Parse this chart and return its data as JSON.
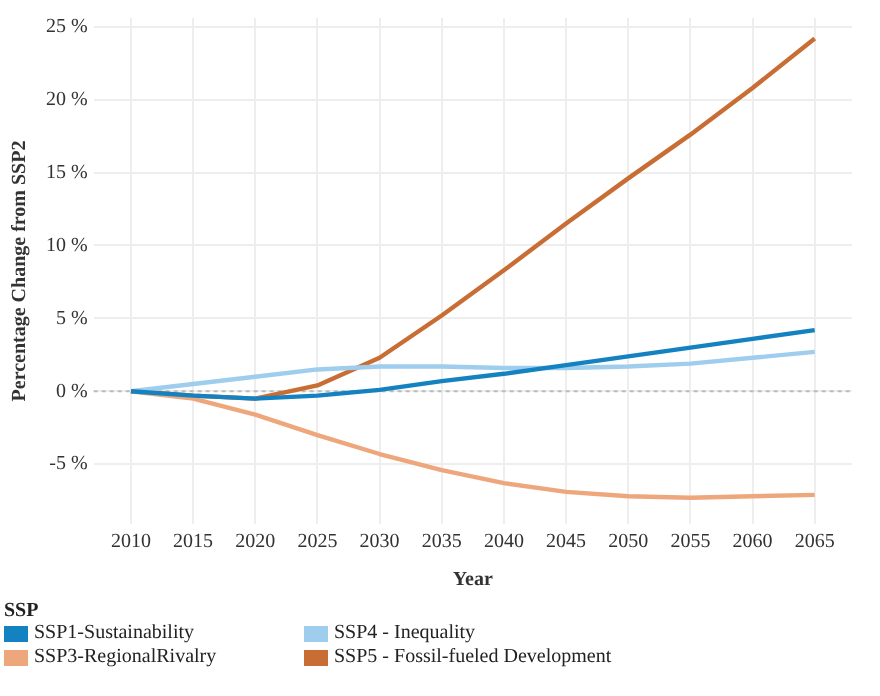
{
  "chart_data": {
    "type": "line",
    "xlabel": "Year",
    "ylabel": "Percentage Change from SSP2",
    "legend_title": "SSP",
    "x": [
      2010,
      2015,
      2020,
      2025,
      2030,
      2035,
      2040,
      2045,
      2050,
      2055,
      2060,
      2065
    ],
    "series": [
      {
        "name": "SSP1-Sustainability",
        "color": "#1482c1",
        "values": [
          0,
          -0.3,
          -0.5,
          -0.3,
          0.1,
          0.7,
          1.2,
          1.8,
          2.4,
          3.0,
          3.6,
          4.2
        ]
      },
      {
        "name": "SSP3-RegionalRivalry",
        "color": "#eea77c",
        "values": [
          0,
          -0.5,
          -1.6,
          -3.0,
          -4.3,
          -5.4,
          -6.3,
          -6.9,
          -7.2,
          -7.3,
          -7.2,
          -7.1
        ]
      },
      {
        "name": "SSP4 - Inequality",
        "color": "#9fcdee",
        "values": [
          0,
          0.5,
          1.0,
          1.5,
          1.7,
          1.7,
          1.6,
          1.6,
          1.7,
          1.9,
          2.3,
          2.7
        ]
      },
      {
        "name": "SSP5 - Fossil-fueled Development",
        "color": "#c86d33",
        "values": [
          0,
          -0.3,
          -0.5,
          0.4,
          2.3,
          5.2,
          8.3,
          11.5,
          14.6,
          17.6,
          20.8,
          24.2
        ]
      }
    ],
    "xlim": [
      2007,
      2068
    ],
    "xticks": [
      2010,
      2015,
      2020,
      2025,
      2030,
      2035,
      2040,
      2045,
      2050,
      2055,
      2060,
      2065
    ],
    "ylim": [
      -9.1,
      25.6
    ],
    "yticks": [
      {
        "value": -5,
        "label": "-5 %"
      },
      {
        "value": 0,
        "label": "0 %"
      },
      {
        "value": 5,
        "label": "5 %"
      },
      {
        "value": 10,
        "label": "10 %"
      },
      {
        "value": 15,
        "label": "15 %"
      },
      {
        "value": 20,
        "label": "20 %"
      },
      {
        "value": 25,
        "label": "25 %"
      }
    ],
    "ref_lines": [
      {
        "axis": "y",
        "value": 0,
        "color": "#bbbbbb",
        "line_style": "dotted"
      }
    ],
    "grid": true,
    "legend": "bottom left",
    "line_style": "solid",
    "marker": "none"
  }
}
